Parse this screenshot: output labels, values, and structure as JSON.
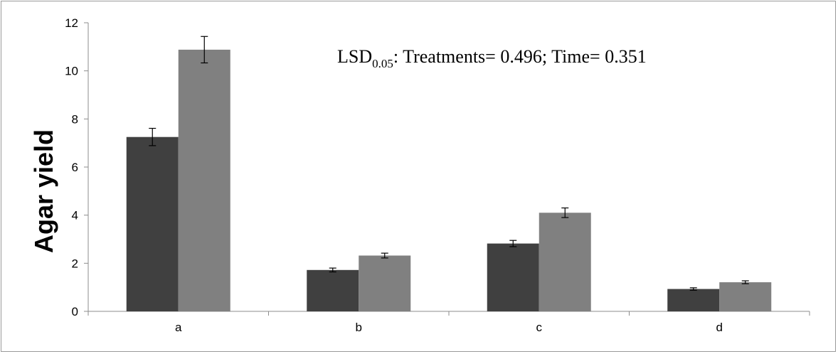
{
  "chart_data": {
    "type": "bar",
    "categories": [
      "a",
      "b",
      "c",
      "d"
    ],
    "series": [
      {
        "values": [
          7.25,
          1.72,
          2.82,
          0.93
        ],
        "errors": [
          0.36,
          0.08,
          0.13,
          0.05
        ],
        "color": "#404040"
      },
      {
        "values": [
          10.88,
          2.32,
          4.1,
          1.21
        ],
        "errors": [
          0.55,
          0.1,
          0.2,
          0.06
        ],
        "color": "#808080"
      }
    ],
    "ylabel": "Agar yield",
    "xlabel": "",
    "ylim": [
      0,
      12
    ],
    "yticks": [
      "0",
      "2",
      "4",
      "6",
      "8",
      "10",
      "12"
    ],
    "grid": false,
    "annotation": {
      "prefix": "LSD",
      "subscript": "0.05",
      "text": ": Treatments= 0.496; Time= 0.351"
    }
  }
}
